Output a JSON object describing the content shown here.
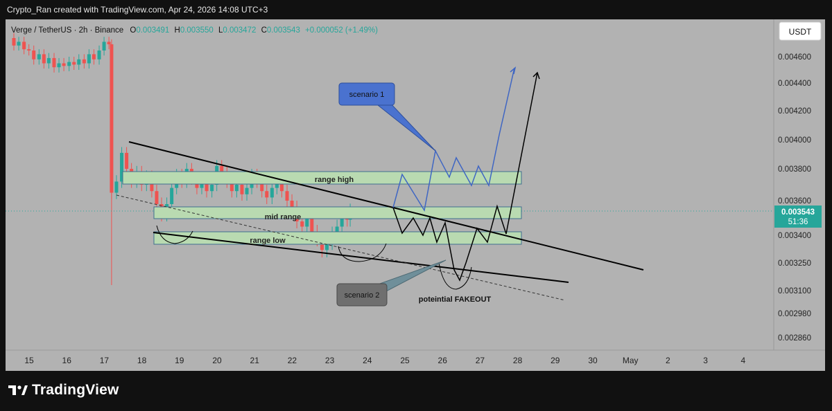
{
  "header": {
    "caption": "Crypto_Ran created with TradingView.com, Apr 24, 2026 14:08 UTC+3"
  },
  "symbol": {
    "name": "Verge / TetherUS · 2h · Binance",
    "o_label": "O",
    "o_value": "0.003491",
    "h_label": "H",
    "h_value": "0.003550",
    "l_label": "L",
    "l_value": "0.003472",
    "c_label": "C",
    "c_value": "0.003543",
    "change": "+0.000052 (+1.49%)"
  },
  "currency_button": "USDT",
  "price_badge": {
    "price": "0.003543",
    "countdown": "51:36"
  },
  "annotations": {
    "range_high": "range high",
    "mid_range": "mid range",
    "range_low": "range low",
    "scenario_1": "scenario 1",
    "scenario_2": "scenario 2",
    "fakeout": "poteintial FAKEOUT"
  },
  "footer": {
    "brand": "TradingView"
  },
  "colors": {
    "up": "#26a69a",
    "down": "#ef5350",
    "zone": "#b9dab1",
    "scenario1": "#3f66c3",
    "scenario2": "#6f6f6f",
    "badge": "#26a69a"
  },
  "chart_data": {
    "type": "candlestick",
    "x_ticks": [
      "15",
      "16",
      "17",
      "18",
      "19",
      "20",
      "21",
      "22",
      "23",
      "24",
      "25",
      "26",
      "27",
      "28",
      "29",
      "30",
      "May",
      "2",
      "3",
      "4"
    ],
    "y_ticks": [
      "0.004600",
      "0.004400",
      "0.004200",
      "0.004000",
      "0.003800",
      "0.003600",
      "0.003400",
      "0.003250",
      "0.003100",
      "0.002980",
      "0.002860"
    ],
    "candles": [
      {
        "x": 0.0,
        "o": 0.00475,
        "c": 0.00469
      },
      {
        "x": 0.13,
        "o": 0.00469,
        "c": 0.00472
      },
      {
        "x": 0.27,
        "o": 0.00472,
        "c": 0.00466
      },
      {
        "x": 0.4,
        "o": 0.00466,
        "c": 0.00465
      },
      {
        "x": 0.53,
        "o": 0.00465,
        "c": 0.00458
      },
      {
        "x": 0.67,
        "o": 0.00458,
        "c": 0.00462
      },
      {
        "x": 0.8,
        "o": 0.00462,
        "c": 0.00455
      },
      {
        "x": 0.93,
        "o": 0.00455,
        "c": 0.00459
      },
      {
        "x": 1.07,
        "o": 0.00459,
        "c": 0.00452
      },
      {
        "x": 1.2,
        "o": 0.00452,
        "c": 0.00455
      },
      {
        "x": 1.33,
        "o": 0.00455,
        "c": 0.00453
      },
      {
        "x": 1.47,
        "o": 0.00453,
        "c": 0.00456
      },
      {
        "x": 1.6,
        "o": 0.00456,
        "c": 0.00454
      },
      {
        "x": 1.73,
        "o": 0.00454,
        "c": 0.00458
      },
      {
        "x": 1.87,
        "o": 0.00458,
        "c": 0.00455
      },
      {
        "x": 2.0,
        "o": 0.00455,
        "c": 0.00462
      },
      {
        "x": 2.13,
        "o": 0.00462,
        "c": 0.00458
      },
      {
        "x": 2.27,
        "o": 0.00458,
        "c": 0.00465
      },
      {
        "x": 2.4,
        "o": 0.00465,
        "c": 0.00472
      },
      {
        "x": 2.53,
        "o": 0.00472,
        "c": 0.0047
      },
      {
        "x": 2.6,
        "o": 0.0047,
        "c": 0.00365
      },
      {
        "x": 2.73,
        "o": 0.00365,
        "c": 0.00372
      },
      {
        "x": 2.87,
        "o": 0.00372,
        "c": 0.00391
      },
      {
        "x": 3.0,
        "o": 0.00391,
        "c": 0.0038
      },
      {
        "x": 3.13,
        "o": 0.0038,
        "c": 0.00372
      },
      {
        "x": 3.27,
        "o": 0.00372,
        "c": 0.00378
      },
      {
        "x": 3.4,
        "o": 0.00378,
        "c": 0.0037
      },
      {
        "x": 3.53,
        "o": 0.0037,
        "c": 0.00375
      },
      {
        "x": 3.67,
        "o": 0.00375,
        "c": 0.00366
      },
      {
        "x": 3.8,
        "o": 0.00366,
        "c": 0.00358
      },
      {
        "x": 3.93,
        "o": 0.00358,
        "c": 0.00352
      },
      {
        "x": 4.07,
        "o": 0.00352,
        "c": 0.00358
      },
      {
        "x": 4.2,
        "o": 0.00358,
        "c": 0.00368
      },
      {
        "x": 4.33,
        "o": 0.00368,
        "c": 0.00376
      },
      {
        "x": 4.47,
        "o": 0.00376,
        "c": 0.00372
      },
      {
        "x": 4.6,
        "o": 0.00372,
        "c": 0.0038
      },
      {
        "x": 4.73,
        "o": 0.0038,
        "c": 0.00374
      },
      {
        "x": 4.87,
        "o": 0.00374,
        "c": 0.00368
      },
      {
        "x": 5.0,
        "o": 0.00368,
        "c": 0.00372
      },
      {
        "x": 5.13,
        "o": 0.00372,
        "c": 0.00366
      },
      {
        "x": 5.27,
        "o": 0.00366,
        "c": 0.0037
      },
      {
        "x": 5.4,
        "o": 0.0037,
        "c": 0.00382
      },
      {
        "x": 5.53,
        "o": 0.00382,
        "c": 0.00378
      },
      {
        "x": 5.67,
        "o": 0.00378,
        "c": 0.00372
      },
      {
        "x": 5.8,
        "o": 0.00372,
        "c": 0.00366
      },
      {
        "x": 5.93,
        "o": 0.00366,
        "c": 0.0037
      },
      {
        "x": 6.07,
        "o": 0.0037,
        "c": 0.00364
      },
      {
        "x": 6.2,
        "o": 0.00364,
        "c": 0.00368
      },
      {
        "x": 6.33,
        "o": 0.00368,
        "c": 0.00376
      },
      {
        "x": 6.47,
        "o": 0.00376,
        "c": 0.00372
      },
      {
        "x": 6.6,
        "o": 0.00372,
        "c": 0.00366
      },
      {
        "x": 6.73,
        "o": 0.00366,
        "c": 0.00362
      },
      {
        "x": 6.87,
        "o": 0.00362,
        "c": 0.00368
      },
      {
        "x": 7.0,
        "o": 0.00368,
        "c": 0.00372
      },
      {
        "x": 7.13,
        "o": 0.00372,
        "c": 0.00366
      },
      {
        "x": 7.27,
        "o": 0.00366,
        "c": 0.0036
      },
      {
        "x": 7.4,
        "o": 0.0036,
        "c": 0.00356
      },
      {
        "x": 7.53,
        "o": 0.00356,
        "c": 0.00348
      },
      {
        "x": 7.67,
        "o": 0.00348,
        "c": 0.00345
      },
      {
        "x": 7.8,
        "o": 0.00345,
        "c": 0.0035
      },
      {
        "x": 7.93,
        "o": 0.0035,
        "c": 0.00342
      },
      {
        "x": 8.07,
        "o": 0.00342,
        "c": 0.00338
      },
      {
        "x": 8.2,
        "o": 0.00338,
        "c": 0.00332
      },
      {
        "x": 8.33,
        "o": 0.00332,
        "c": 0.00336
      },
      {
        "x": 8.47,
        "o": 0.00336,
        "c": 0.00341
      },
      {
        "x": 8.6,
        "o": 0.00341,
        "c": 0.00345
      },
      {
        "x": 8.73,
        "o": 0.00345,
        "c": 0.00352
      },
      {
        "x": 8.87,
        "o": 0.00352,
        "c": 0.00349
      },
      {
        "x": 8.95,
        "o": 0.00349,
        "c": 0.003543
      }
    ],
    "candle_x_unit": "days since Apr 15",
    "last_price": 0.003543
  }
}
